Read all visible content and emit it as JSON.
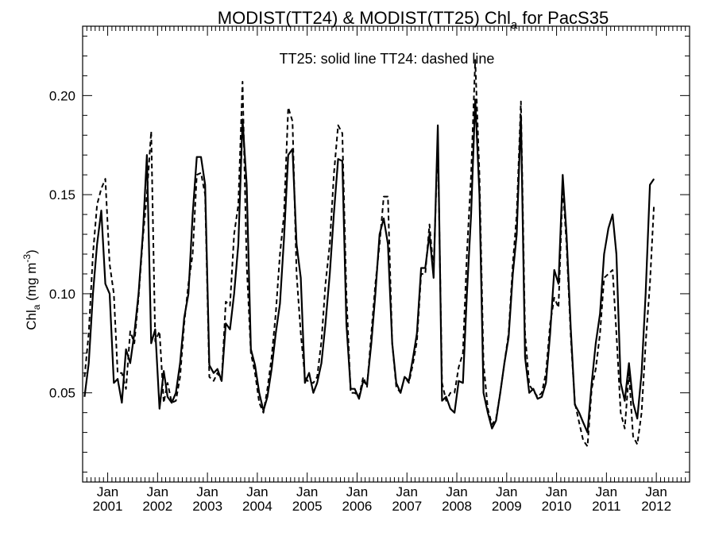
{
  "chart_data": {
    "type": "line",
    "title_parts": {
      "prefix": "MODIST(TT24) & MODIST(TT25)  Chl",
      "subscript": "a",
      "suffix": " for PacS35"
    },
    "ylabel_parts": {
      "prefix": "Chl",
      "subscript": "a",
      "middle": " (mg m",
      "superscript": "-3",
      "suffix": ")"
    },
    "annotation": "TT25: solid line   TT24: dashed line",
    "xlim": [
      "2000-07-01",
      "2012-09-01"
    ],
    "ylim": [
      0.005,
      0.235
    ],
    "yticks": [
      0.05,
      0.1,
      0.15,
      0.2
    ],
    "ytick_labels": [
      "0.05",
      "0.10",
      "0.15",
      "0.20"
    ],
    "xticks": [
      {
        "date": "2001-01-01",
        "month": "Jan",
        "year": "2001"
      },
      {
        "date": "2002-01-01",
        "month": "Jan",
        "year": "2002"
      },
      {
        "date": "2003-01-01",
        "month": "Jan",
        "year": "2003"
      },
      {
        "date": "2004-01-01",
        "month": "Jan",
        "year": "2004"
      },
      {
        "date": "2005-01-01",
        "month": "Jan",
        "year": "2005"
      },
      {
        "date": "2006-01-01",
        "month": "Jan",
        "year": "2006"
      },
      {
        "date": "2007-01-01",
        "month": "Jan",
        "year": "2007"
      },
      {
        "date": "2008-01-01",
        "month": "Jan",
        "year": "2008"
      },
      {
        "date": "2009-01-01",
        "month": "Jan",
        "year": "2009"
      },
      {
        "date": "2010-01-01",
        "month": "Jan",
        "year": "2010"
      },
      {
        "date": "2011-01-01",
        "month": "Jan",
        "year": "2011"
      },
      {
        "date": "2012-01-01",
        "month": "Jan",
        "year": "2012"
      }
    ],
    "series": [
      {
        "style": "solid",
        "color": "#000000",
        "start": "2000-07",
        "values": [
          0.048,
          0.065,
          0.1,
          0.125,
          0.142,
          0.105,
          0.1,
          0.055,
          0.057,
          0.045,
          0.072,
          0.065,
          0.08,
          0.1,
          0.13,
          0.17,
          0.075,
          0.082,
          0.042,
          0.061,
          0.048,
          0.045,
          0.05,
          0.065,
          0.088,
          0.1,
          0.14,
          0.169,
          0.169,
          0.155,
          0.064,
          0.06,
          0.062,
          0.056,
          0.085,
          0.082,
          0.1,
          0.125,
          0.188,
          0.155,
          0.072,
          0.064,
          0.05,
          0.041,
          0.048,
          0.062,
          0.08,
          0.095,
          0.128,
          0.17,
          0.173,
          0.125,
          0.108,
          0.055,
          0.06,
          0.05,
          0.055,
          0.065,
          0.085,
          0.11,
          0.14,
          0.168,
          0.167,
          0.085,
          0.052,
          0.052,
          0.047,
          0.056,
          0.054,
          0.075,
          0.1,
          0.13,
          0.138,
          0.125,
          0.075,
          0.055,
          0.05,
          0.058,
          0.056,
          0.068,
          0.08,
          0.113,
          0.113,
          0.13,
          0.108,
          0.185,
          0.046,
          0.048,
          0.042,
          0.04,
          0.056,
          0.055,
          0.1,
          0.14,
          0.198,
          0.15,
          0.05,
          0.04,
          0.032,
          0.036,
          0.05,
          0.065,
          0.078,
          0.11,
          0.13,
          0.19,
          0.068,
          0.05,
          0.052,
          0.047,
          0.048,
          0.055,
          0.08,
          0.112,
          0.105,
          0.16,
          0.13,
          0.082,
          0.044,
          0.04,
          0.035,
          0.03,
          0.055,
          0.075,
          0.09,
          0.12,
          0.133,
          0.14,
          0.12,
          0.055,
          0.046,
          0.065,
          0.045,
          0.037,
          0.06,
          0.1,
          0.155,
          0.158
        ]
      },
      {
        "style": "dashed",
        "color": "#000000",
        "start": "2000-07",
        "values": [
          0.058,
          0.08,
          0.12,
          0.145,
          0.153,
          0.158,
          0.115,
          0.1,
          0.06,
          0.06,
          0.052,
          0.081,
          0.075,
          0.098,
          0.128,
          0.15,
          0.182,
          0.076,
          0.081,
          0.045,
          0.055,
          0.045,
          0.046,
          0.058,
          0.085,
          0.105,
          0.12,
          0.16,
          0.161,
          0.15,
          0.058,
          0.056,
          0.06,
          0.056,
          0.096,
          0.094,
          0.13,
          0.145,
          0.207,
          0.115,
          0.07,
          0.06,
          0.045,
          0.04,
          0.052,
          0.068,
          0.09,
          0.12,
          0.14,
          0.194,
          0.187,
          0.11,
          0.08,
          0.058,
          0.055,
          0.055,
          0.058,
          0.076,
          0.105,
          0.125,
          0.16,
          0.185,
          0.181,
          0.1,
          0.05,
          0.05,
          0.048,
          0.058,
          0.053,
          0.08,
          0.105,
          0.125,
          0.149,
          0.149,
          0.075,
          0.053,
          0.05,
          0.058,
          0.055,
          0.065,
          0.076,
          0.11,
          0.11,
          0.135,
          0.112,
          0.178,
          0.055,
          0.046,
          0.05,
          0.05,
          0.063,
          0.07,
          0.12,
          0.16,
          0.218,
          0.16,
          0.065,
          0.042,
          0.034,
          0.037,
          0.05,
          0.065,
          0.08,
          0.115,
          0.14,
          0.197,
          0.08,
          0.054,
          0.051,
          0.048,
          0.05,
          0.06,
          0.085,
          0.098,
          0.093,
          0.155,
          0.125,
          0.078,
          0.045,
          0.035,
          0.026,
          0.023,
          0.052,
          0.062,
          0.08,
          0.108,
          0.11,
          0.112,
          0.08,
          0.04,
          0.032,
          0.06,
          0.028,
          0.024,
          0.04,
          0.075,
          0.105,
          0.145
        ]
      }
    ]
  }
}
